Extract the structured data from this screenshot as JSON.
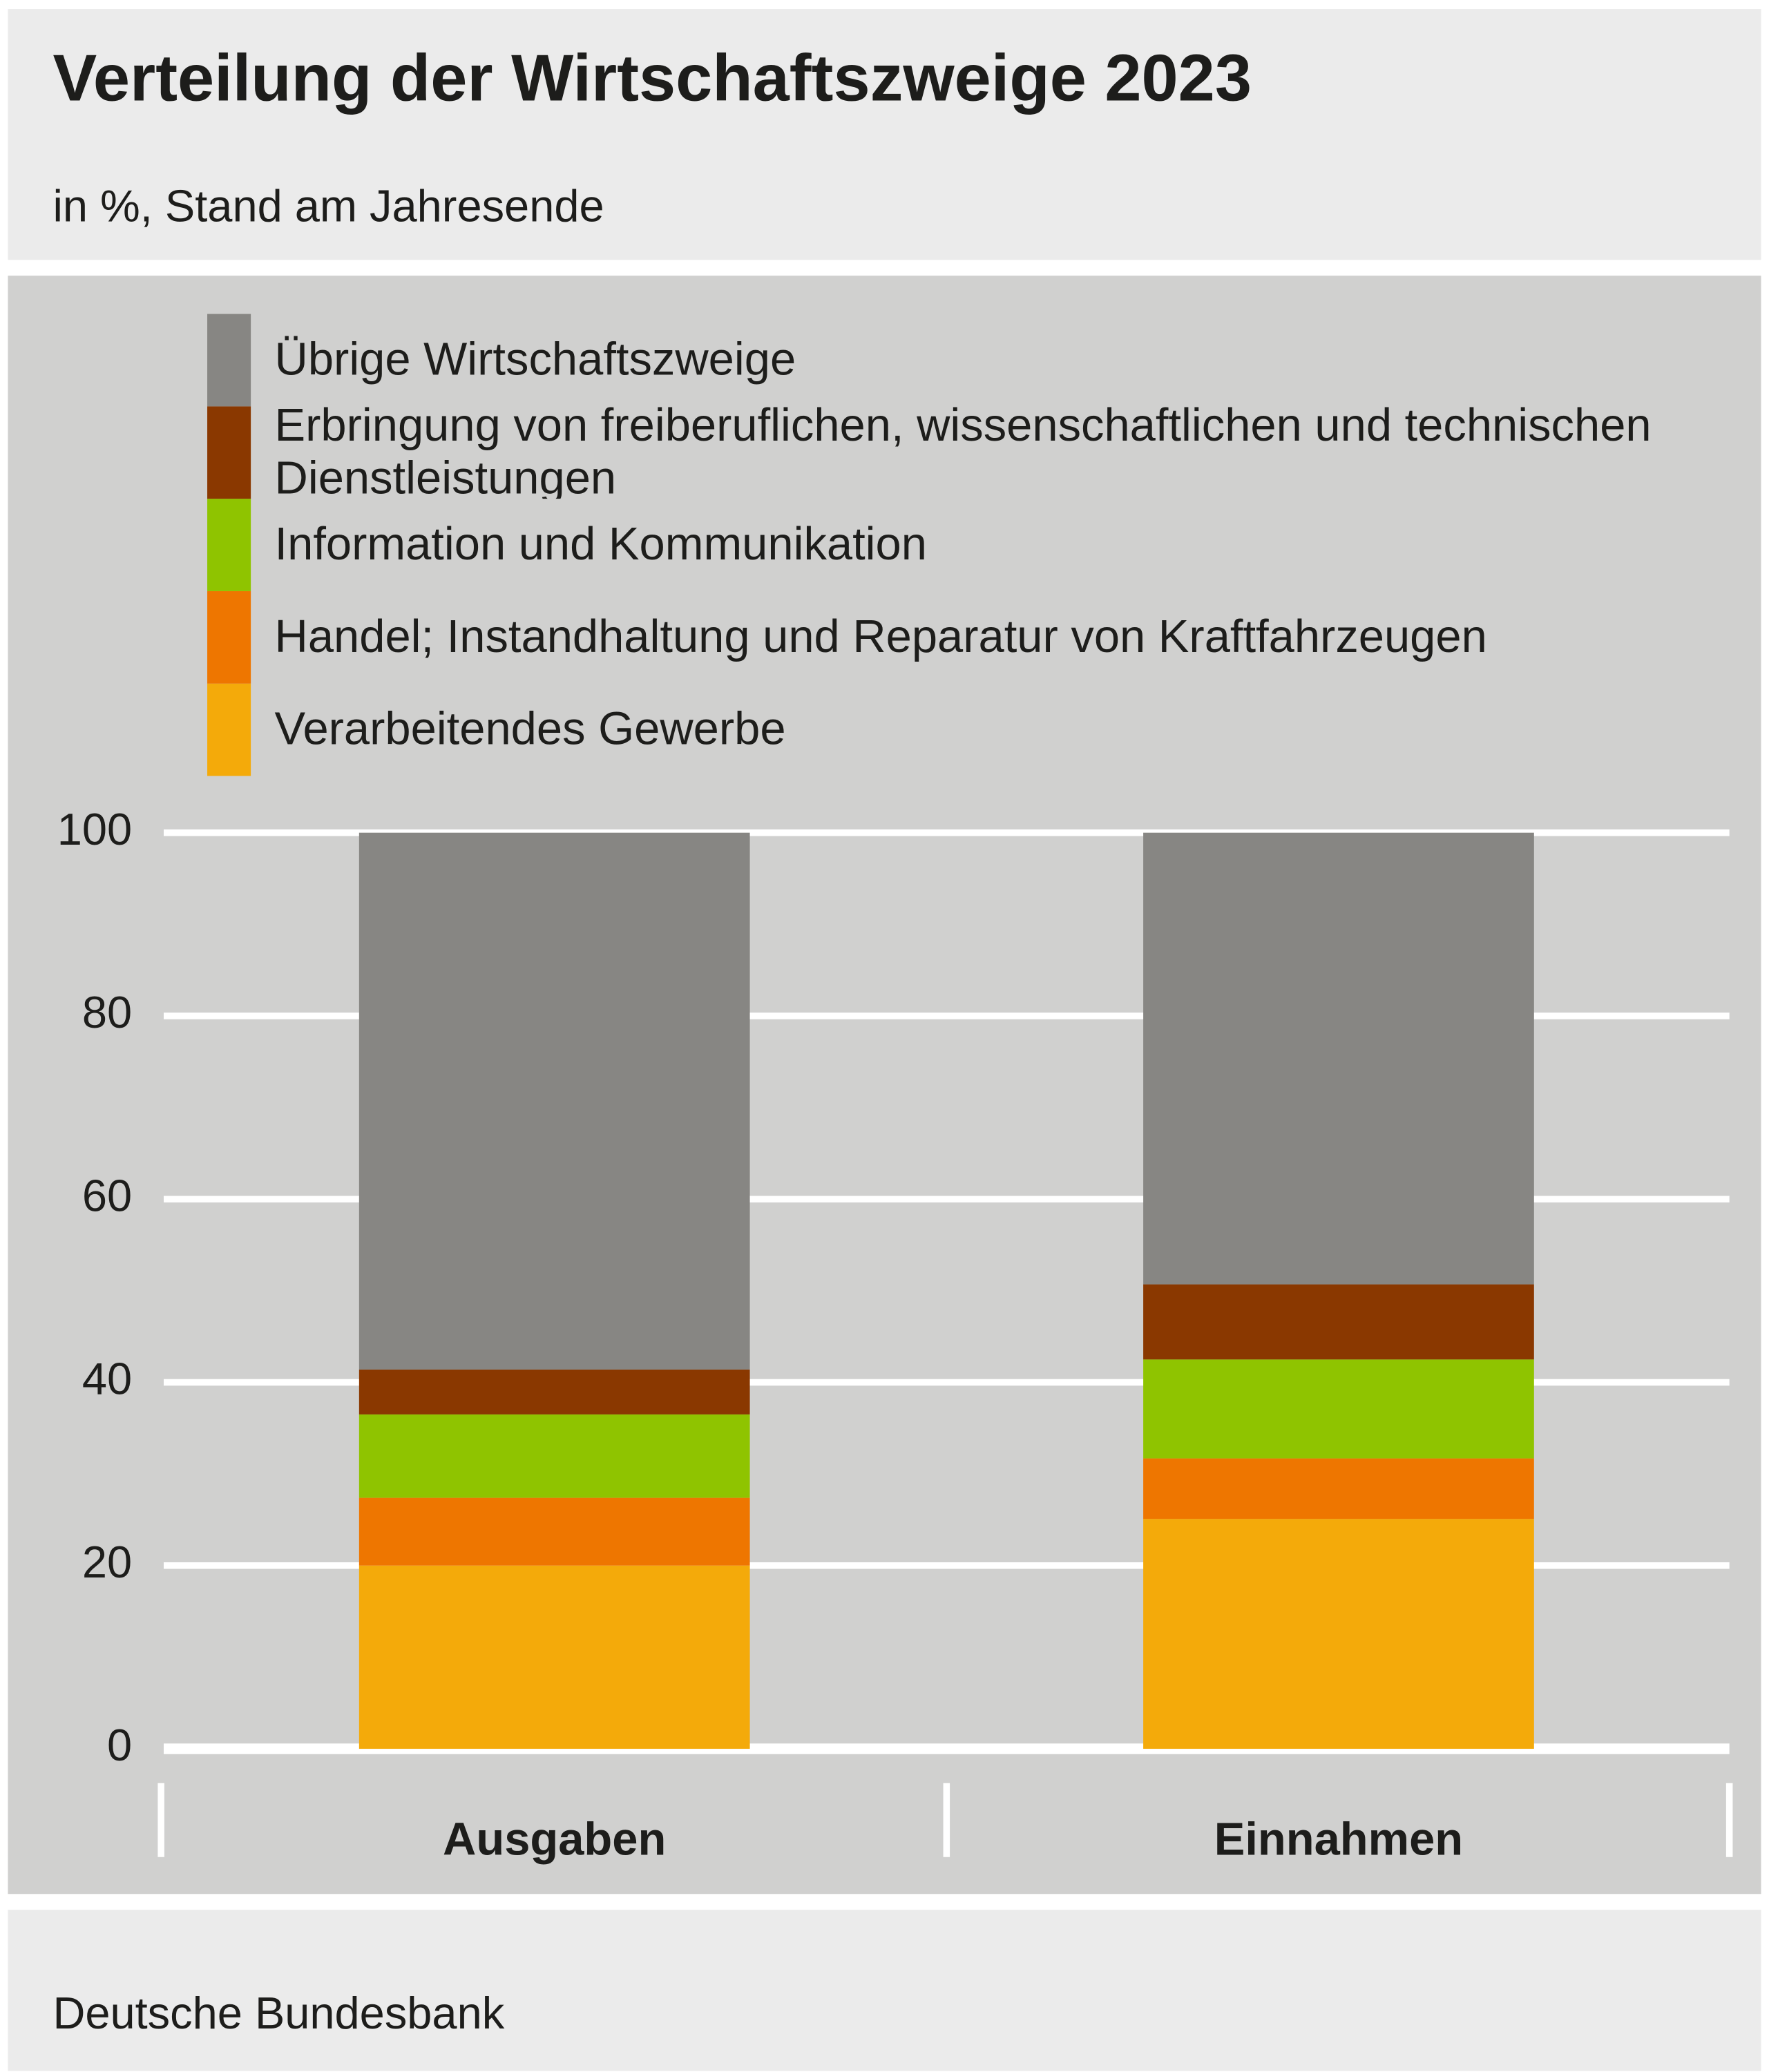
{
  "chart_data": {
    "type": "stacked-bar",
    "title": "Verteilung der Wirtschaftszweige 2023",
    "subtitle": "in %, Stand am Jahresende",
    "source": "Deutsche Bundesbank",
    "categories": [
      "Ausgaben",
      "Einnahmen"
    ],
    "series": [
      {
        "name": "Verarbeitendes Gewerbe",
        "color": "#f4aa0a",
        "values": [
          20,
          25.1
        ]
      },
      {
        "name": "Handel; Instandhaltung und Reparatur von Kraftfahrzeugen",
        "color": "#ee7600",
        "values": [
          7.4,
          6.6
        ]
      },
      {
        "name": "Information und Kommunikation",
        "color": "#8fc400",
        "values": [
          9.1,
          10.8
        ]
      },
      {
        "name": "Erbringung von freiberuflichen, wissenschaftlichen und technischen Dienstleistungen",
        "color": "#8a3800",
        "values": [
          4.9,
          8.2
        ]
      },
      {
        "name": "Übrige Wirtschaftszweige",
        "color": "#878683",
        "values": [
          58.6,
          49.3
        ]
      }
    ],
    "ylim": [
      0,
      100
    ],
    "yticks": [
      0,
      20,
      40,
      60,
      80,
      100
    ],
    "grid": true
  }
}
